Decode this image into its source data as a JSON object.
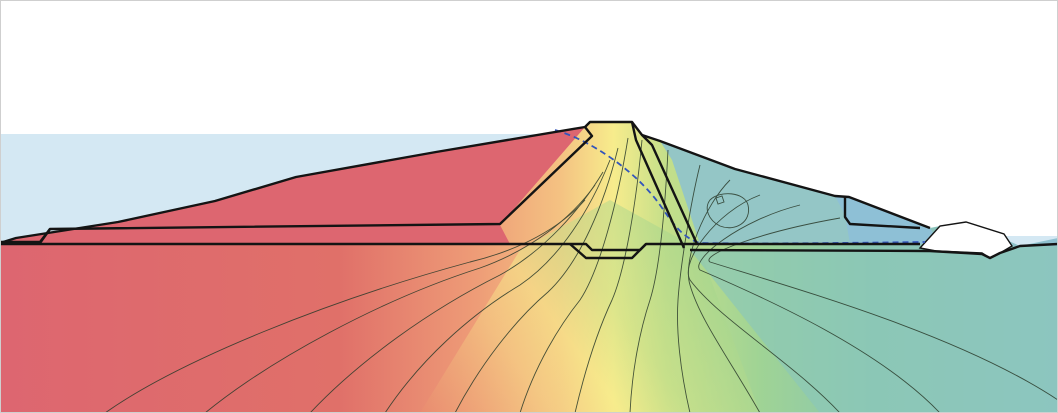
{
  "figure": {
    "kind": "seepage-analysis-cross-section",
    "description_visible_text": "",
    "colors": {
      "background": "#ffffff",
      "reservoir_water": "#d4e8f3",
      "tailwater": "#d4e8f3",
      "outline": "#141414",
      "contour_line": "#2a3a2a",
      "phreatic_line": "#3355bb",
      "filter_zone": "#ffffff",
      "head_scale": [
        "#dd6670",
        "#e9876f",
        "#f3b67c",
        "#f7ec8c",
        "#c4df8a",
        "#93cf8f",
        "#86c4ad",
        "#8ec0d1"
      ]
    },
    "zones": [
      {
        "name": "upstream-shell",
        "color": "#dd6670"
      },
      {
        "name": "clay-core",
        "color": "#f0a276"
      },
      {
        "name": "inclined-chimney-drain",
        "color": "#9fd39c"
      },
      {
        "name": "downstream-shell",
        "color": "#94c6c6"
      },
      {
        "name": "downstream-toe-berm",
        "color": "#8ec0d6"
      },
      {
        "name": "toe-drain",
        "color": "#ffffff"
      },
      {
        "name": "foundation",
        "color": "#c4df8a"
      }
    ],
    "has_phreatic_line": true,
    "contour_count": 13
  }
}
